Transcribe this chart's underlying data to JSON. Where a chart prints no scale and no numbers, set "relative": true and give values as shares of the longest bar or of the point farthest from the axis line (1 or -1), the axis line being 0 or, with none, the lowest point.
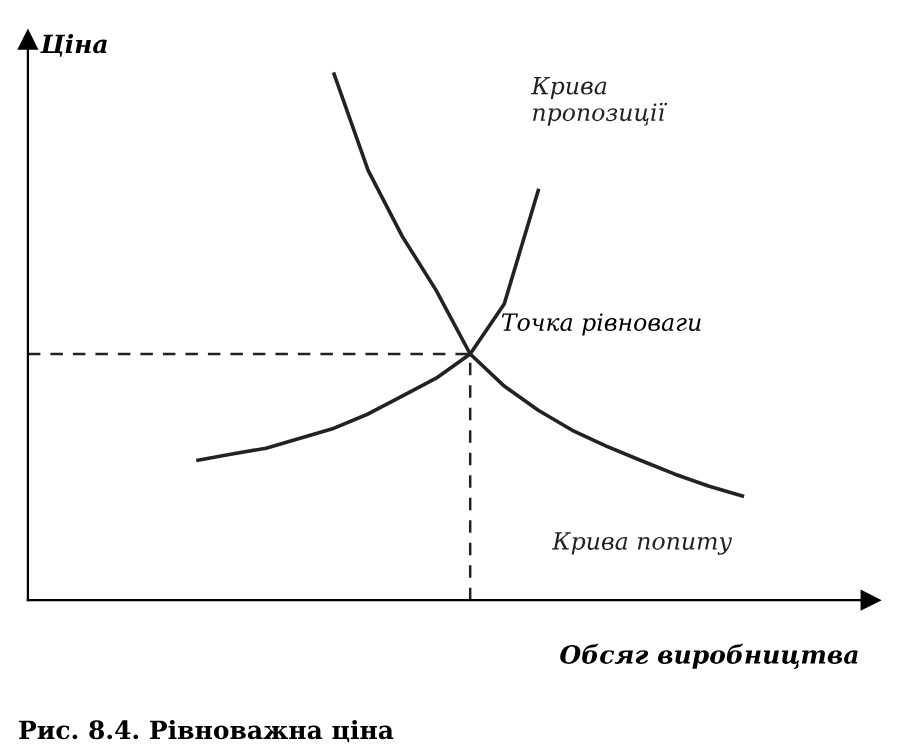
{
  "chart_data": {
    "type": "line",
    "relative": true,
    "xlabel": "Обсяг виробництва",
    "ylabel": "Ціна",
    "categories": [
      null,
      null,
      null,
      null,
      null,
      null,
      null,
      null,
      null,
      null,
      null,
      null,
      null,
      null,
      null,
      null,
      null,
      null,
      null,
      null,
      null,
      null,
      null
    ],
    "series": [
      {
        "name": "Крива попиту",
        "color": "#222222",
        "values": [
          null,
          null,
          null,
          null,
          null,
          null,
          null,
          null,
          1.0,
          0.817,
          0.692,
          0.589,
          0.468,
          0.407,
          0.361,
          0.323,
          0.293,
          0.266,
          0.24,
          0.217,
          0.198,
          null,
          null
        ]
      },
      {
        "name": "Крива\nпропозиції",
        "color": "#222222",
        "values": [
          null,
          null,
          null,
          null,
          0.266,
          0.278,
          0.289,
          0.308,
          0.327,
          0.354,
          0.388,
          0.422,
          0.468,
          0.563,
          0.779,
          null,
          null,
          null,
          null,
          null,
          null,
          null,
          null
        ]
      }
    ],
    "ref_lines": [
      {
        "axis": "y",
        "value": 0.468,
        "line_style": "dashed",
        "color": "#222222"
      }
    ],
    "annotations": [
      "Точка рівноваги",
      "Рис. 8.4. Рівноважна ціна"
    ]
  }
}
